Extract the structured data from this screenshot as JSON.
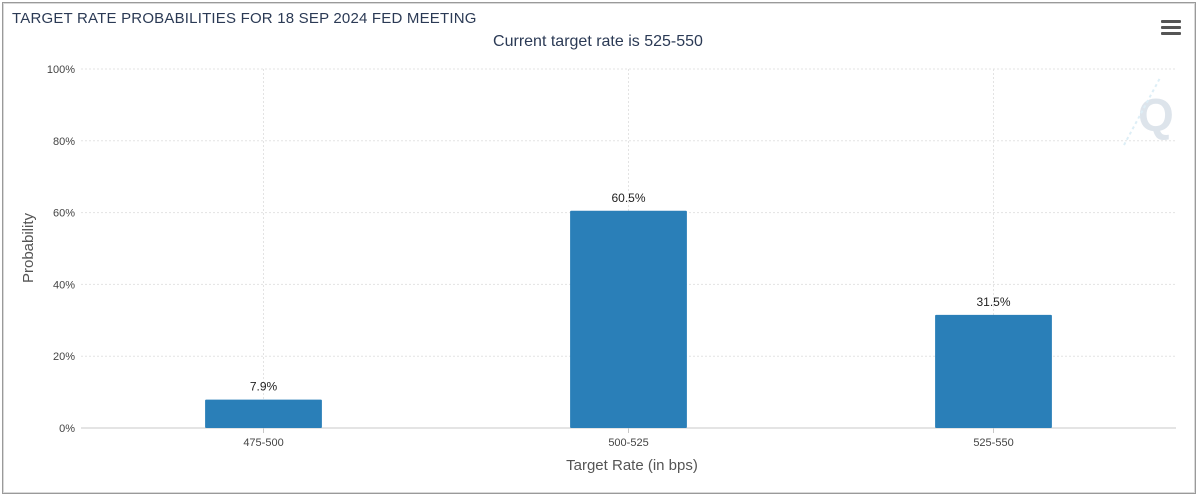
{
  "title": "TARGET RATE PROBABILITIES FOR 18 SEP 2024 FED MEETING",
  "subtitle": "Current target rate is 525-550",
  "menu_icon": "hamburger-menu-icon",
  "watermark_icon": "q-logo-watermark",
  "colors": {
    "bar": "#2a7fb8",
    "grid": "#e3e3e3",
    "axis": "#c8c8c8"
  },
  "chart_data": {
    "type": "bar",
    "categories": [
      "475-500",
      "500-525",
      "525-550"
    ],
    "values": [
      7.9,
      60.5,
      31.5
    ],
    "data_labels": [
      "7.9%",
      "60.5%",
      "31.5%"
    ],
    "xlabel": "Target Rate (in bps)",
    "ylabel": "Probability",
    "ylim": [
      0,
      100
    ],
    "yticks": [
      "0%",
      "20%",
      "40%",
      "60%",
      "80%",
      "100%"
    ],
    "grid": true
  }
}
